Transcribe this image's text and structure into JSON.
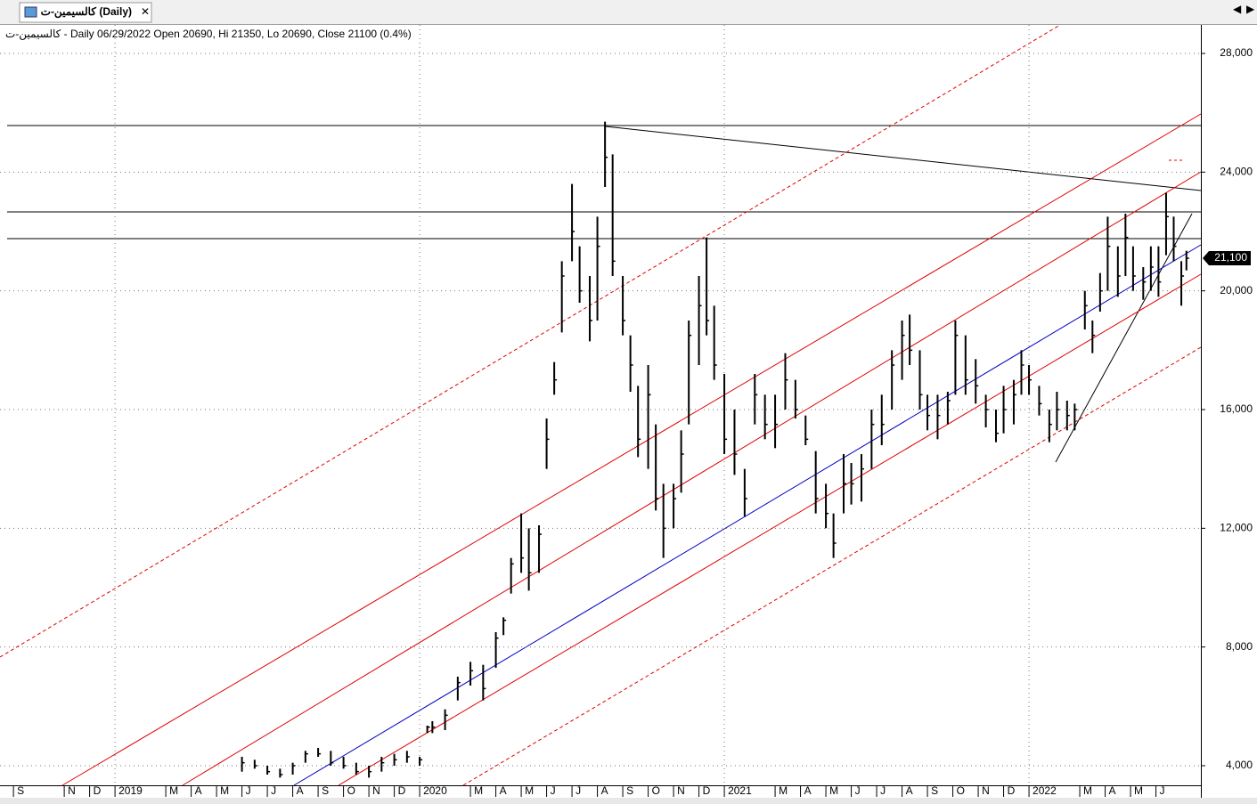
{
  "tab_title": "كالسيمين-ت (Daily)",
  "chart_data": {
    "type": "ohlc",
    "title": "كالسيمين-ت - Daily 06/29/2022 Open 20690, Hi 21350, Lo 20690, Close 21100 (0.4%)",
    "x": [
      9.0,
      9.5,
      10,
      10.5,
      11,
      11.5,
      12,
      12.5,
      13,
      13.5,
      14,
      14.5,
      15,
      15.5,
      16,
      16.3,
      16.5,
      17,
      17.5,
      18,
      18.5,
      19,
      19.3,
      19.6,
      20,
      20.3,
      20.7,
      21,
      21.3,
      21.6,
      22,
      22.3,
      22.7,
      23,
      23.3,
      23.6,
      24,
      24.3,
      24.6,
      25,
      25.3,
      25.6,
      26,
      26.3,
      26.6,
      27,
      27.3,
      27.6,
      28,
      28.4,
      28.8,
      29.2,
      29.6,
      30,
      30.4,
      30.8,
      31.2,
      31.6,
      32,
      32.3,
      32.7,
      33,
      33.4,
      33.8,
      34.2,
      34.6,
      35,
      35.3,
      35.7,
      36,
      36.4,
      36.8,
      37.1,
      37.5,
      37.9,
      38.3,
      38.7,
      39,
      39.4,
      39.7,
      40,
      40.4,
      40.8,
      41.1,
      41.5,
      41.8,
      42.2,
      42.5,
      42.8,
      43.1,
      43.5,
      43.8,
      44.1,
      44.5,
      44.8,
      45.1,
      45.4,
      45.7,
      46,
      46.2
    ],
    "high": [
      4300,
      4200,
      4000,
      3900,
      4100,
      4500,
      4600,
      4500,
      4300,
      4100,
      4000,
      4300,
      4400,
      4500,
      4300,
      5350,
      5500,
      5900,
      7000,
      7500,
      7400,
      8500,
      9000,
      11000,
      12500,
      12000,
      12100,
      15700,
      17600,
      21000,
      23600,
      21500,
      20500,
      22500,
      25700,
      24600,
      20500,
      18500,
      16800,
      17500,
      15500,
      13500,
      13500,
      15300,
      19000,
      20500,
      21800,
      19500,
      17200,
      16000,
      14000,
      17200,
      16500,
      16500,
      17900,
      17000,
      15800,
      14600,
      13500,
      12500,
      14500,
      14200,
      14500,
      16000,
      16500,
      18000,
      19000,
      19200,
      18000,
      16500,
      16500,
      16600,
      19000,
      18500,
      17700,
      16500,
      16000,
      16800,
      17000,
      18000,
      17500,
      16800,
      16000,
      16600,
      16300,
      16200,
      20000,
      19000,
      20600,
      22500,
      21500,
      22600,
      21500,
      20800,
      21500,
      21500,
      23300,
      22500,
      21000,
      21350
    ],
    "low": [
      3800,
      3900,
      3700,
      3600,
      3700,
      4100,
      4300,
      4000,
      3900,
      3700,
      3600,
      3800,
      4000,
      4100,
      4000,
      5100,
      5100,
      5200,
      6200,
      6700,
      6200,
      7300,
      8400,
      9800,
      10500,
      9900,
      10500,
      14000,
      16500,
      18600,
      21000,
      19600,
      18300,
      19000,
      23500,
      20500,
      18500,
      16600,
      14400,
      14000,
      12600,
      11000,
      12000,
      13200,
      15500,
      17500,
      18500,
      17000,
      14500,
      13800,
      12400,
      15500,
      15000,
      14700,
      16000,
      15700,
      14800,
      12500,
      12000,
      11000,
      12500,
      12800,
      12900,
      14000,
      14800,
      16000,
      17000,
      17500,
      16000,
      15300,
      15000,
      15500,
      16500,
      16500,
      16200,
      15400,
      14900,
      15200,
      15500,
      16500,
      16500,
      15800,
      14900,
      15300,
      15300,
      15300,
      18700,
      17900,
      19300,
      20000,
      19800,
      20500,
      20000,
      19700,
      20000,
      19800,
      21200,
      21000,
      19500,
      20690
    ],
    "close": [
      4100,
      4000,
      3800,
      3700,
      4000,
      4400,
      4400,
      4100,
      4000,
      3800,
      3800,
      4100,
      4200,
      4300,
      4200,
      5300,
      5300,
      5700,
      6800,
      7200,
      6600,
      8300,
      8900,
      10800,
      11000,
      10500,
      11800,
      15000,
      17000,
      20500,
      22000,
      20000,
      19000,
      21500,
      24500,
      21000,
      19000,
      17500,
      15000,
      16500,
      13000,
      12000,
      13000,
      14500,
      18500,
      19500,
      19000,
      17500,
      15000,
      14500,
      13000,
      16500,
      15500,
      15500,
      17000,
      16000,
      15000,
      13000,
      12500,
      11500,
      13500,
      13500,
      14000,
      15500,
      15500,
      17500,
      18500,
      18000,
      16500,
      15800,
      15800,
      16300,
      18500,
      17000,
      16800,
      16000,
      15200,
      16000,
      16500,
      17500,
      17000,
      16200,
      15500,
      16000,
      15800,
      16000,
      19500,
      18500,
      20000,
      21500,
      20500,
      21800,
      20500,
      20300,
      20800,
      20300,
      22500,
      21500,
      20500,
      21100
    ],
    "color": "#000000",
    "last_price": {
      "value": 21100,
      "label": "21,100"
    },
    "xlim": [
      -0.53,
      46.77
    ],
    "xticks": [
      {
        "value": 0,
        "label": "S"
      },
      {
        "value": 2,
        "label": "N"
      },
      {
        "value": 3,
        "label": "D"
      },
      {
        "value": 4,
        "label": "2019"
      },
      {
        "value": 6,
        "label": "M"
      },
      {
        "value": 7,
        "label": "A"
      },
      {
        "value": 8,
        "label": "M"
      },
      {
        "value": 9,
        "label": "J"
      },
      {
        "value": 10,
        "label": "J"
      },
      {
        "value": 11,
        "label": "A"
      },
      {
        "value": 12,
        "label": "S"
      },
      {
        "value": 13,
        "label": "O"
      },
      {
        "value": 14,
        "label": "N"
      },
      {
        "value": 15,
        "label": "D"
      },
      {
        "value": 16,
        "label": "2020"
      },
      {
        "value": 18,
        "label": "M"
      },
      {
        "value": 19,
        "label": "A"
      },
      {
        "value": 20,
        "label": "M"
      },
      {
        "value": 21,
        "label": "J"
      },
      {
        "value": 22,
        "label": "J"
      },
      {
        "value": 23,
        "label": "A"
      },
      {
        "value": 24,
        "label": "S"
      },
      {
        "value": 25,
        "label": "O"
      },
      {
        "value": 26,
        "label": "N"
      },
      {
        "value": 27,
        "label": "D"
      },
      {
        "value": 28,
        "label": "2021"
      },
      {
        "value": 30,
        "label": "M"
      },
      {
        "value": 31,
        "label": "A"
      },
      {
        "value": 32,
        "label": "M"
      },
      {
        "value": 33,
        "label": "J"
      },
      {
        "value": 34,
        "label": "J"
      },
      {
        "value": 35,
        "label": "A"
      },
      {
        "value": 36,
        "label": "S"
      },
      {
        "value": 37,
        "label": "O"
      },
      {
        "value": 38,
        "label": "N"
      },
      {
        "value": 39,
        "label": "D"
      },
      {
        "value": 40,
        "label": "2022"
      },
      {
        "value": 42,
        "label": "M"
      },
      {
        "value": 43,
        "label": "A"
      },
      {
        "value": 44,
        "label": "M"
      },
      {
        "value": 45,
        "label": "J"
      }
    ],
    "ylim": [
      3340,
      28960
    ],
    "yticks": [
      {
        "value": 4000,
        "label": "4,000"
      },
      {
        "value": 8000,
        "label": "8,000"
      },
      {
        "value": 12000,
        "label": "12,000"
      },
      {
        "value": 16000,
        "label": "16,000"
      },
      {
        "value": 20000,
        "label": "20,000"
      },
      {
        "value": 24000,
        "label": "24,000"
      },
      {
        "value": 28000,
        "label": "28,000"
      }
    ],
    "grid": true
  }
}
